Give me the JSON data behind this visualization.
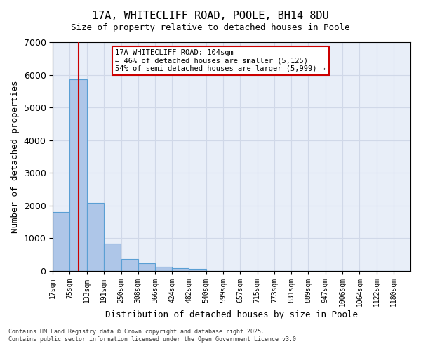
{
  "title1": "17A, WHITECLIFF ROAD, POOLE, BH14 8DU",
  "title2": "Size of property relative to detached houses in Poole",
  "xlabel": "Distribution of detached houses by size in Poole",
  "ylabel": "Number of detached properties",
  "annotation_line1": "17A WHITECLIFF ROAD: 104sqm",
  "annotation_line2": "← 46% of detached houses are smaller (5,125)",
  "annotation_line3": "54% of semi-detached houses are larger (5,999) →",
  "subject_value": 104,
  "categories": [
    "17sqm",
    "75sqm",
    "133sqm",
    "191sqm",
    "250sqm",
    "308sqm",
    "366sqm",
    "424sqm",
    "482sqm",
    "540sqm",
    "599sqm",
    "657sqm",
    "715sqm",
    "773sqm",
    "831sqm",
    "889sqm",
    "947sqm",
    "1006sqm",
    "1064sqm",
    "1122sqm",
    "1180sqm"
  ],
  "bar_edges": [
    17,
    75,
    133,
    191,
    250,
    308,
    366,
    424,
    482,
    540,
    599,
    657,
    715,
    773,
    831,
    889,
    947,
    1006,
    1064,
    1122,
    1180
  ],
  "values": [
    1800,
    5850,
    2080,
    830,
    360,
    220,
    110,
    80,
    55,
    0,
    0,
    0,
    0,
    0,
    0,
    0,
    0,
    0,
    0,
    0,
    0
  ],
  "bar_color": "#aec6e8",
  "bar_edgecolor": "#5a9fd4",
  "subject_line_color": "#cc0000",
  "annotation_box_edgecolor": "#cc0000",
  "annotation_box_facecolor": "#ffffff",
  "grid_color": "#d0d8e8",
  "bg_color": "#e8eef8",
  "ylim": [
    0,
    7000
  ],
  "yticks": [
    0,
    1000,
    2000,
    3000,
    4000,
    5000,
    6000,
    7000
  ],
  "footer1": "Contains HM Land Registry data © Crown copyright and database right 2025.",
  "footer2": "Contains public sector information licensed under the Open Government Licence v3.0."
}
